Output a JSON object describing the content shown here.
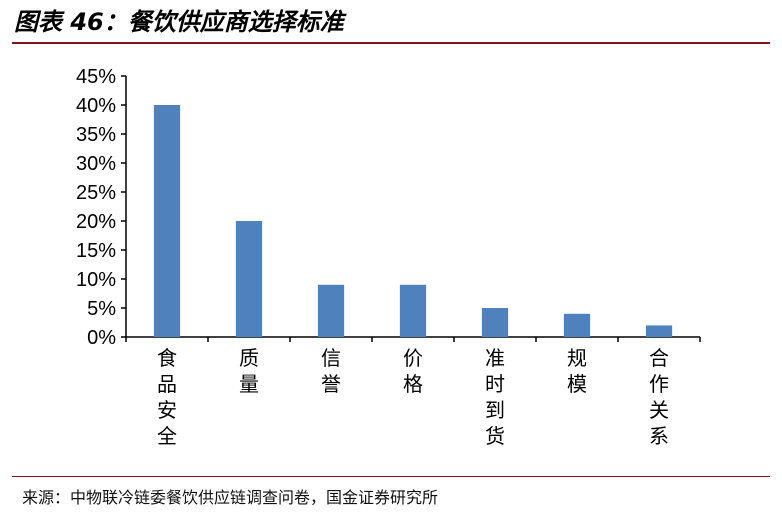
{
  "figure": {
    "title": "图表 46：餐饮供应商选择标准",
    "source": "来源：中物联冷链委餐饮供应链调查问卷，国金证券研究所"
  },
  "colors": {
    "bar": "#4f81bd",
    "rule": "#7d1522",
    "axis": "#000000"
  },
  "chart_data": {
    "type": "bar",
    "title": "",
    "xlabel": "",
    "ylabel": "",
    "categories": [
      "食品安全",
      "质量",
      "信誉",
      "价格",
      "准时到货",
      "规模",
      "合作关系"
    ],
    "values": [
      40,
      20,
      9,
      9,
      5,
      4,
      2
    ],
    "value_unit": "%",
    "ylim": [
      0,
      45
    ],
    "yticks": [
      0,
      5,
      10,
      15,
      20,
      25,
      30,
      35,
      40,
      45
    ],
    "ytick_labels": [
      "0%",
      "5%",
      "10%",
      "15%",
      "20%",
      "25%",
      "30%",
      "35%",
      "40%",
      "45%"
    ],
    "grid": false,
    "legend": "none",
    "category_label_orientation": "vertical"
  }
}
